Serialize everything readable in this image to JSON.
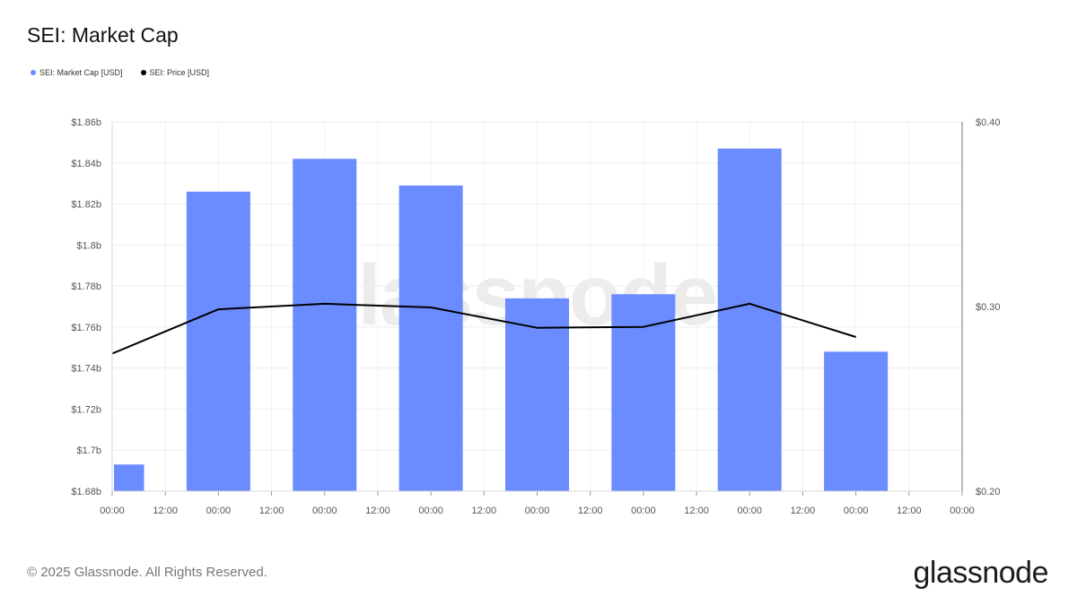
{
  "header": {
    "title": "SEI: Market Cap"
  },
  "legend": [
    {
      "label": "SEI: Market Cap [USD]",
      "color": "#6b8cff"
    },
    {
      "label": "SEI: Price [USD]",
      "color": "#000000"
    }
  ],
  "watermark": "glassnode",
  "footer": {
    "copyright": "© 2025 Glassnode. All Rights Reserved.",
    "brand": "glassnode"
  },
  "chart_data": {
    "type": "bar",
    "title": "SEI: Market Cap",
    "x_ticks": [
      "00:00",
      "12:00",
      "00:00",
      "12:00",
      "00:00",
      "12:00",
      "00:00",
      "12:00",
      "00:00",
      "12:00",
      "00:00",
      "12:00",
      "00:00",
      "12:00",
      "00:00",
      "12:00",
      "00:00"
    ],
    "x_range": [
      0,
      16
    ],
    "left_axis": {
      "ylim": [
        1.68,
        1.86
      ],
      "ticks": [
        1.68,
        1.7,
        1.72,
        1.74,
        1.76,
        1.78,
        1.8,
        1.82,
        1.84,
        1.86
      ],
      "tick_labels": [
        "$1.68b",
        "$1.7b",
        "$1.72b",
        "$1.74b",
        "$1.76b",
        "$1.78b",
        "$1.8b",
        "$1.82b",
        "$1.84b",
        "$1.86b"
      ]
    },
    "right_axis": {
      "ylim": [
        0.2,
        0.4
      ],
      "ticks": [
        0.2,
        0.3,
        0.4
      ],
      "tick_labels": [
        "$0.20",
        "$0.30",
        "$0.40"
      ]
    },
    "series": [
      {
        "name": "SEI: Market Cap [USD]",
        "type": "bar",
        "axis": "left",
        "color": "#6b8cff",
        "x": [
          0,
          2,
          4,
          6,
          8,
          10,
          12,
          14
        ],
        "values": [
          1.693,
          1.826,
          1.842,
          1.829,
          1.774,
          1.776,
          1.847,
          1.748
        ]
      },
      {
        "name": "SEI: Price [USD]",
        "type": "line",
        "axis": "right",
        "color": "#000000",
        "x": [
          0,
          2,
          4,
          6,
          8,
          10,
          12,
          14
        ],
        "values": [
          0.2745,
          0.2985,
          0.3015,
          0.2995,
          0.2885,
          0.289,
          0.3015,
          0.2835
        ]
      }
    ],
    "grid": true,
    "legend_position": "top-left"
  }
}
